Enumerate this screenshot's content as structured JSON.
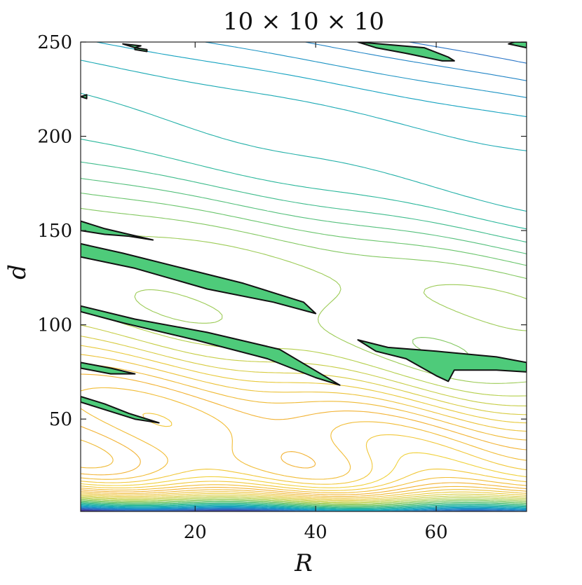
{
  "chart_data": {
    "type": "contour",
    "title": "10 × 10 × 10",
    "xlabel": "R",
    "ylabel": "d",
    "xlim": [
      1,
      75
    ],
    "ylim": [
      1,
      250
    ],
    "xticks": [
      20,
      40,
      60
    ],
    "yticks": [
      50,
      100,
      150,
      200,
      250
    ],
    "grid": false,
    "legend": "none",
    "colormap": [
      "#3b0f70",
      "#3f42a6",
      "#2a78c8",
      "#14a3c0",
      "#2bb89a",
      "#6cc56b",
      "#b6cf4a",
      "#e9c93a",
      "#f2b233",
      "#f0d23a"
    ],
    "contour_levels": 48,
    "highlight_color": "#4ecb7a",
    "highlight_outline": "#111111",
    "highlighted_regions": [
      {
        "name": "region-top-left-1",
        "points": [
          [
            8,
            249
          ],
          [
            11,
            248
          ],
          [
            10,
            247
          ]
        ]
      },
      {
        "name": "region-top-left-2",
        "points": [
          [
            10,
            247
          ],
          [
            12,
            246
          ],
          [
            12,
            245
          ],
          [
            10,
            246
          ]
        ]
      },
      {
        "name": "region-top-center",
        "points": [
          [
            47,
            250
          ],
          [
            58,
            247
          ],
          [
            62,
            242
          ],
          [
            63,
            240
          ],
          [
            61,
            240
          ],
          [
            55,
            244
          ],
          [
            50,
            247
          ]
        ]
      },
      {
        "name": "region-top-right",
        "points": [
          [
            73,
            250
          ],
          [
            75,
            250
          ],
          [
            75,
            247
          ],
          [
            72,
            249
          ]
        ]
      },
      {
        "name": "region-left-edge",
        "points": [
          [
            1,
            221
          ],
          [
            2,
            222
          ],
          [
            2,
            220
          ]
        ]
      },
      {
        "name": "region-150",
        "points": [
          [
            1,
            155
          ],
          [
            5,
            151
          ],
          [
            9,
            148
          ],
          [
            13,
            145
          ],
          [
            9,
            147
          ],
          [
            5,
            148
          ],
          [
            1,
            150
          ]
        ]
      },
      {
        "name": "region-130",
        "points": [
          [
            1,
            143
          ],
          [
            8,
            138
          ],
          [
            18,
            130
          ],
          [
            28,
            122
          ],
          [
            38,
            112
          ],
          [
            40,
            106
          ],
          [
            33,
            112
          ],
          [
            22,
            119
          ],
          [
            10,
            130
          ],
          [
            1,
            136
          ]
        ]
      },
      {
        "name": "region-105",
        "points": [
          [
            1,
            110
          ],
          [
            10,
            103
          ],
          [
            22,
            96
          ],
          [
            34,
            87
          ],
          [
            44,
            68
          ],
          [
            40,
            72
          ],
          [
            32,
            82
          ],
          [
            20,
            92
          ],
          [
            8,
            101
          ],
          [
            1,
            107
          ]
        ]
      },
      {
        "name": "region-80",
        "points": [
          [
            1,
            80
          ],
          [
            6,
            77
          ],
          [
            10,
            74
          ],
          [
            6,
            74
          ],
          [
            1,
            77
          ]
        ]
      },
      {
        "name": "region-60",
        "points": [
          [
            1,
            62
          ],
          [
            5,
            58
          ],
          [
            9,
            53
          ],
          [
            14,
            48
          ],
          [
            10,
            50
          ],
          [
            5,
            55
          ],
          [
            1,
            59
          ]
        ]
      },
      {
        "name": "region-right-mid",
        "points": [
          [
            47,
            92
          ],
          [
            52,
            88
          ],
          [
            60,
            86
          ],
          [
            70,
            83
          ],
          [
            75,
            80
          ],
          [
            75,
            75
          ],
          [
            70,
            76
          ],
          [
            63,
            76
          ],
          [
            62,
            70
          ],
          [
            60,
            73
          ],
          [
            55,
            82
          ],
          [
            50,
            86
          ]
        ]
      }
    ]
  }
}
